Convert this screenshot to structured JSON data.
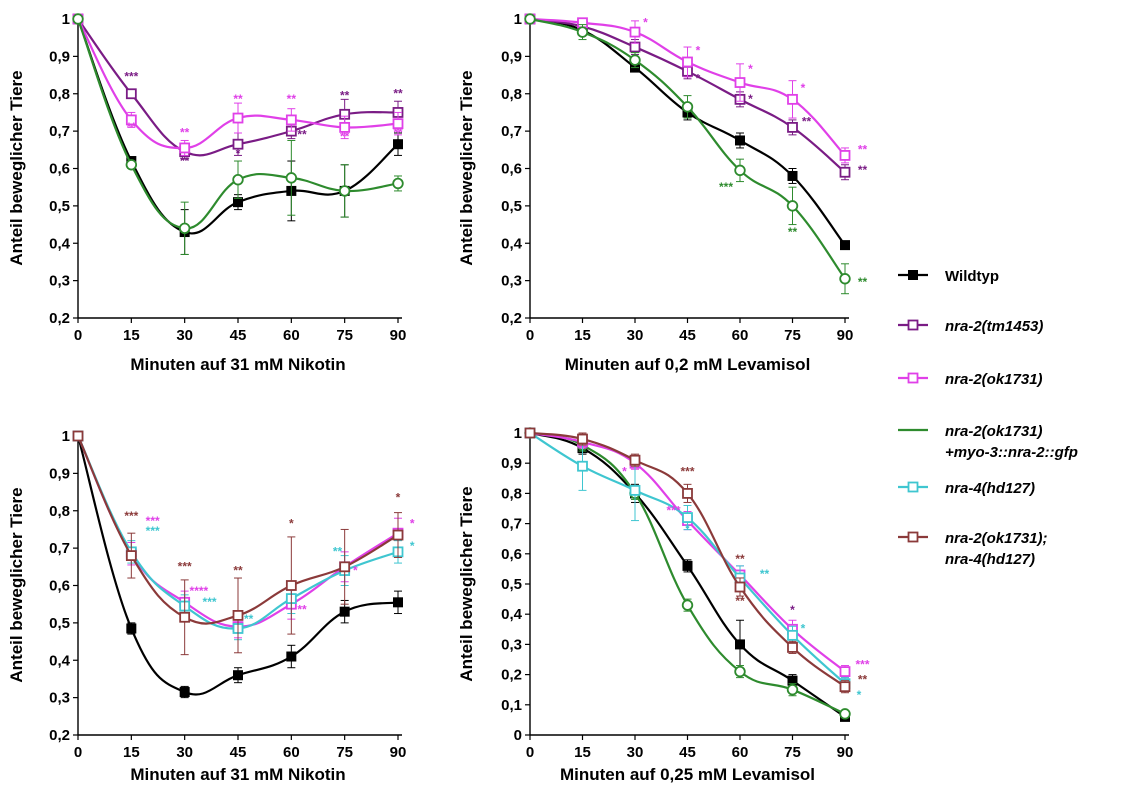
{
  "legend": {
    "items": [
      {
        "key": "wt",
        "lines": [
          "Wildtyp"
        ],
        "italic": false
      },
      {
        "key": "tm1453",
        "lines": [
          "nra-2(tm1453)"
        ],
        "italic": true
      },
      {
        "key": "ok1731",
        "lines": [
          "nra-2(ok1731)"
        ],
        "italic": true
      },
      {
        "key": "rescue",
        "lines": [
          "nra-2(ok1731)",
          "+myo-3::nra-2::gfp"
        ],
        "italic": true
      },
      {
        "key": "hd127",
        "lines": [
          "nra-4(hd127)"
        ],
        "italic": true
      },
      {
        "key": "double",
        "lines": [
          "nra-2(ok1731);",
          "nra-4(hd127)"
        ],
        "italic": true
      }
    ]
  },
  "styles": {
    "wt": {
      "color": "#000000",
      "marker": "square-filled"
    },
    "tm1453": {
      "color": "#7a1c85",
      "marker": "square-open"
    },
    "ok1731": {
      "color": "#e040e8",
      "marker": "square-open"
    },
    "rescue": {
      "color": "#2e8b2e",
      "marker": "circle-open"
    },
    "hd127": {
      "color": "#3fc6d0",
      "marker": "square-open"
    },
    "double": {
      "color": "#8b3a3a",
      "marker": "square-open"
    }
  },
  "chart_data": [
    {
      "type": "line",
      "title": "",
      "xlabel": "Minuten auf 31 mM Nikotin",
      "ylabel": "Anteil beweglicher Tiere",
      "x": [
        0,
        15,
        30,
        45,
        60,
        75,
        90
      ],
      "xticks": [
        "0",
        "15",
        "30",
        "45",
        "60",
        "75",
        "90"
      ],
      "ylim": [
        0.2,
        1
      ],
      "yticks": [
        "0,2",
        "0,3",
        "0,4",
        "0,5",
        "0,6",
        "0,7",
        "0,8",
        "0,9",
        "1"
      ],
      "series": [
        {
          "name": "Wildtyp",
          "key": "wt",
          "values": [
            1,
            0.62,
            0.43,
            0.51,
            0.54,
            0.54,
            0.665
          ],
          "errors": [
            0,
            0.01,
            0.06,
            0.02,
            0.08,
            0.07,
            0.03
          ]
        },
        {
          "name": "nra-2(tm1453)",
          "key": "tm1453",
          "values": [
            1,
            0.8,
            0.645,
            0.665,
            0.7,
            0.745,
            0.75
          ],
          "errors": [
            0,
            0.01,
            0.02,
            0.03,
            0.02,
            0.04,
            0.03
          ]
        },
        {
          "name": "nra-2(ok1731)",
          "key": "ok1731",
          "values": [
            1,
            0.73,
            0.655,
            0.735,
            0.73,
            0.71,
            0.72
          ],
          "errors": [
            0,
            0.02,
            0.02,
            0.04,
            0.03,
            0.03,
            0.03
          ]
        },
        {
          "name": "nra-2(ok1731) +myo-3::nra-2::gfp",
          "key": "rescue",
          "values": [
            1,
            0.61,
            0.44,
            0.57,
            0.575,
            0.54,
            0.56
          ],
          "errors": [
            0,
            0.01,
            0.07,
            0.05,
            0.1,
            0.07,
            0.02
          ]
        }
      ],
      "annotations": [
        {
          "text": "***",
          "x": 15,
          "y": 0.835,
          "key": "tm1453"
        },
        {
          "text": "**",
          "x": 15,
          "y": 0.7,
          "key": "ok1731"
        },
        {
          "text": "**",
          "x": 30,
          "y": 0.685,
          "key": "ok1731"
        },
        {
          "text": "**",
          "x": 30,
          "y": 0.61,
          "key": "tm1453"
        },
        {
          "text": "**",
          "x": 45,
          "y": 0.775,
          "key": "ok1731"
        },
        {
          "text": "*",
          "x": 45,
          "y": 0.63,
          "key": "tm1453"
        },
        {
          "text": "**",
          "x": 60,
          "y": 0.775,
          "key": "ok1731"
        },
        {
          "text": "**",
          "x": 63,
          "y": 0.68,
          "key": "tm1453"
        },
        {
          "text": "**",
          "x": 75,
          "y": 0.785,
          "key": "tm1453"
        },
        {
          "text": "**",
          "x": 75,
          "y": 0.675,
          "key": "ok1731"
        },
        {
          "text": "**",
          "x": 90,
          "y": 0.79,
          "key": "tm1453"
        },
        {
          "text": "**",
          "x": 90,
          "y": 0.685,
          "key": "ok1731"
        }
      ]
    },
    {
      "type": "line",
      "title": "",
      "xlabel": "Minuten auf 0,2 mM Levamisol",
      "ylabel": "Anteil beweglicher Tiere",
      "x": [
        0,
        15,
        30,
        45,
        60,
        75,
        90
      ],
      "xticks": [
        "0",
        "15",
        "30",
        "45",
        "60",
        "75",
        "90"
      ],
      "ylim": [
        0.2,
        1
      ],
      "yticks": [
        "0,2",
        "0,3",
        "0,4",
        "0,5",
        "0,6",
        "0,7",
        "0,8",
        "0,9",
        "1"
      ],
      "series": [
        {
          "name": "Wildtyp",
          "key": "wt",
          "values": [
            1,
            0.97,
            0.87,
            0.75,
            0.675,
            0.58,
            0.395
          ],
          "errors": [
            0,
            0.01,
            0.01,
            0.02,
            0.02,
            0.02,
            0.01
          ]
        },
        {
          "name": "nra-2(tm1453)",
          "key": "tm1453",
          "values": [
            1,
            0.98,
            0.925,
            0.86,
            0.785,
            0.71,
            0.59
          ],
          "errors": [
            0,
            0.01,
            0.02,
            0.02,
            0.02,
            0.02,
            0.02
          ]
        },
        {
          "name": "nra-2(ok1731)",
          "key": "ok1731",
          "values": [
            1,
            0.99,
            0.965,
            0.885,
            0.83,
            0.785,
            0.635
          ],
          "errors": [
            0,
            0.01,
            0.03,
            0.04,
            0.05,
            0.05,
            0.02
          ]
        },
        {
          "name": "nra-2(ok1731) +myo-3::nra-2::gfp",
          "key": "rescue",
          "values": [
            1,
            0.965,
            0.89,
            0.765,
            0.595,
            0.5,
            0.305
          ],
          "errors": [
            0,
            0.02,
            0.02,
            0.03,
            0.03,
            0.05,
            0.04
          ]
        }
      ],
      "annotations": [
        {
          "text": "*",
          "x": 33,
          "y": 0.98,
          "key": "ok1731"
        },
        {
          "text": "*",
          "x": 48,
          "y": 0.905,
          "key": "ok1731"
        },
        {
          "text": "*",
          "x": 48,
          "y": 0.83,
          "key": "tm1453"
        },
        {
          "text": "*",
          "x": 63,
          "y": 0.855,
          "key": "ok1731"
        },
        {
          "text": "*",
          "x": 63,
          "y": 0.775,
          "key": "tm1453"
        },
        {
          "text": "***",
          "x": 56,
          "y": 0.54,
          "key": "rescue"
        },
        {
          "text": "*",
          "x": 78,
          "y": 0.805,
          "key": "ok1731"
        },
        {
          "text": "**",
          "x": 79,
          "y": 0.715,
          "key": "tm1453"
        },
        {
          "text": "**",
          "x": 75,
          "y": 0.42,
          "key": "rescue"
        },
        {
          "text": "**",
          "x": 95,
          "y": 0.64,
          "key": "ok1731"
        },
        {
          "text": "**",
          "x": 95,
          "y": 0.585,
          "key": "tm1453"
        },
        {
          "text": "**",
          "x": 95,
          "y": 0.285,
          "key": "rescue"
        }
      ]
    },
    {
      "type": "line",
      "title": "",
      "xlabel": "Minuten auf 31 mM Nikotin",
      "ylabel": "Anteil beweglicher Tiere",
      "x": [
        0,
        15,
        30,
        45,
        60,
        75,
        90
      ],
      "xticks": [
        "0",
        "15",
        "30",
        "45",
        "60",
        "75",
        "90"
      ],
      "ylim": [
        0.2,
        1
      ],
      "yticks": [
        "0,2",
        "0,3",
        "0,4",
        "0,5",
        "0,6",
        "0,7",
        "0,8",
        "0,9",
        "1"
      ],
      "series": [
        {
          "name": "Wildtyp",
          "key": "wt",
          "values": [
            1,
            0.485,
            0.315,
            0.36,
            0.41,
            0.53,
            0.555
          ],
          "errors": [
            0,
            0.015,
            0.015,
            0.02,
            0.03,
            0.03,
            0.03
          ]
        },
        {
          "name": "nra-2(ok1731)",
          "key": "ok1731",
          "values": [
            1,
            0.685,
            0.555,
            0.49,
            0.55,
            0.65,
            0.74
          ],
          "errors": [
            0,
            0.03,
            0.03,
            0.03,
            0.04,
            0.04,
            0.04
          ]
        },
        {
          "name": "nra-4(hd127)",
          "key": "hd127",
          "values": [
            1,
            0.69,
            0.545,
            0.485,
            0.565,
            0.64,
            0.69
          ],
          "errors": [
            0,
            0.03,
            0.03,
            0.03,
            0.04,
            0.04,
            0.03
          ]
        },
        {
          "name": "nra-2(ok1731); nra-4(hd127)",
          "key": "double",
          "values": [
            1,
            0.68,
            0.515,
            0.52,
            0.6,
            0.65,
            0.735
          ],
          "errors": [
            0,
            0.06,
            0.1,
            0.1,
            0.13,
            0.1,
            0.06
          ]
        }
      ],
      "annotations": [
        {
          "text": "***",
          "x": 15,
          "y": 0.775,
          "key": "double"
        },
        {
          "text": "***",
          "x": 21,
          "y": 0.762,
          "key": "ok1731"
        },
        {
          "text": "***",
          "x": 21,
          "y": 0.735,
          "key": "hd127"
        },
        {
          "text": "***",
          "x": 30,
          "y": 0.64,
          "key": "double"
        },
        {
          "text": "****",
          "x": 34,
          "y": 0.575,
          "key": "ok1731"
        },
        {
          "text": "***",
          "x": 37,
          "y": 0.545,
          "key": "hd127"
        },
        {
          "text": "**",
          "x": 45,
          "y": 0.63,
          "key": "double"
        },
        {
          "text": "**",
          "x": 48,
          "y": 0.5,
          "key": "hd127"
        },
        {
          "text": "*",
          "x": 60,
          "y": 0.755,
          "key": "double"
        },
        {
          "text": "**",
          "x": 63,
          "y": 0.525,
          "key": "ok1731"
        },
        {
          "text": "**",
          "x": 73,
          "y": 0.68,
          "key": "hd127"
        },
        {
          "text": "*",
          "x": 78,
          "y": 0.63,
          "key": "ok1731"
        },
        {
          "text": "*",
          "x": 90,
          "y": 0.825,
          "key": "double"
        },
        {
          "text": "*",
          "x": 94,
          "y": 0.755,
          "key": "ok1731"
        },
        {
          "text": "*",
          "x": 94,
          "y": 0.695,
          "key": "hd127"
        }
      ]
    },
    {
      "type": "line",
      "title": "",
      "xlabel": "Minuten auf 0,25 mM Levamisol",
      "ylabel": "Anteil beweglicher Tiere",
      "x": [
        0,
        15,
        30,
        45,
        60,
        75,
        90
      ],
      "xticks": [
        "0",
        "15",
        "30",
        "45",
        "60",
        "75",
        "90"
      ],
      "ylim": [
        0,
        1
      ],
      "yticks": [
        "0",
        "0,1",
        "0,2",
        "0,3",
        "0,4",
        "0,5",
        "0,6",
        "0,7",
        "0,8",
        "0,9",
        "1"
      ],
      "series": [
        {
          "name": "Wildtyp",
          "key": "wt",
          "values": [
            1,
            0.95,
            0.8,
            0.56,
            0.3,
            0.18,
            0.06
          ],
          "errors": [
            0,
            0.02,
            0.03,
            0.02,
            0.08,
            0.02,
            0.01
          ]
        },
        {
          "name": "nra-2(ok1731) +myo-3::nra-2::gfp",
          "key": "rescue",
          "values": [
            1,
            0.96,
            0.8,
            0.43,
            0.21,
            0.15,
            0.07
          ],
          "errors": [
            0,
            0.02,
            0.02,
            0.02,
            0.02,
            0.02,
            0.01
          ]
        },
        {
          "name": "nra-2(ok1731)",
          "key": "ok1731",
          "values": [
            1,
            0.97,
            0.9,
            0.71,
            0.53,
            0.35,
            0.21
          ],
          "errors": [
            0,
            0.02,
            0.02,
            0.03,
            0.03,
            0.03,
            0.02
          ]
        },
        {
          "name": "nra-4(hd127)",
          "key": "hd127",
          "values": [
            1,
            0.89,
            0.81,
            0.72,
            0.52,
            0.33,
            0.17
          ],
          "errors": [
            0,
            0.08,
            0.1,
            0.04,
            0.04,
            0.03,
            0.02
          ]
        },
        {
          "name": "nra-2(ok1731); nra-4(hd127)",
          "key": "double",
          "values": [
            1,
            0.98,
            0.91,
            0.8,
            0.49,
            0.29,
            0.16
          ],
          "errors": [
            0,
            0.02,
            0.02,
            0.03,
            0.03,
            0.02,
            0.02
          ]
        }
      ],
      "annotations": [
        {
          "text": "*",
          "x": 27,
          "y": 0.86,
          "key": "ok1731"
        },
        {
          "text": "***",
          "x": 45,
          "y": 0.86,
          "key": "double"
        },
        {
          "text": "***",
          "x": 41,
          "y": 0.73,
          "key": "ok1731"
        },
        {
          "text": "*",
          "x": 45,
          "y": 0.67,
          "key": "hd127"
        },
        {
          "text": "**",
          "x": 60,
          "y": 0.57,
          "key": "double"
        },
        {
          "text": "**",
          "x": 67,
          "y": 0.52,
          "key": "hd127"
        },
        {
          "text": "**",
          "x": 60,
          "y": 0.43,
          "key": "double"
        },
        {
          "text": "*",
          "x": 75,
          "y": 0.4,
          "key": "tm1453"
        },
        {
          "text": "*",
          "x": 78,
          "y": 0.34,
          "key": "hd127"
        },
        {
          "text": "***",
          "x": 95,
          "y": 0.22,
          "key": "ok1731"
        },
        {
          "text": "**",
          "x": 95,
          "y": 0.17,
          "key": "double"
        },
        {
          "text": "*",
          "x": 94,
          "y": 0.12,
          "key": "hd127"
        }
      ]
    }
  ]
}
